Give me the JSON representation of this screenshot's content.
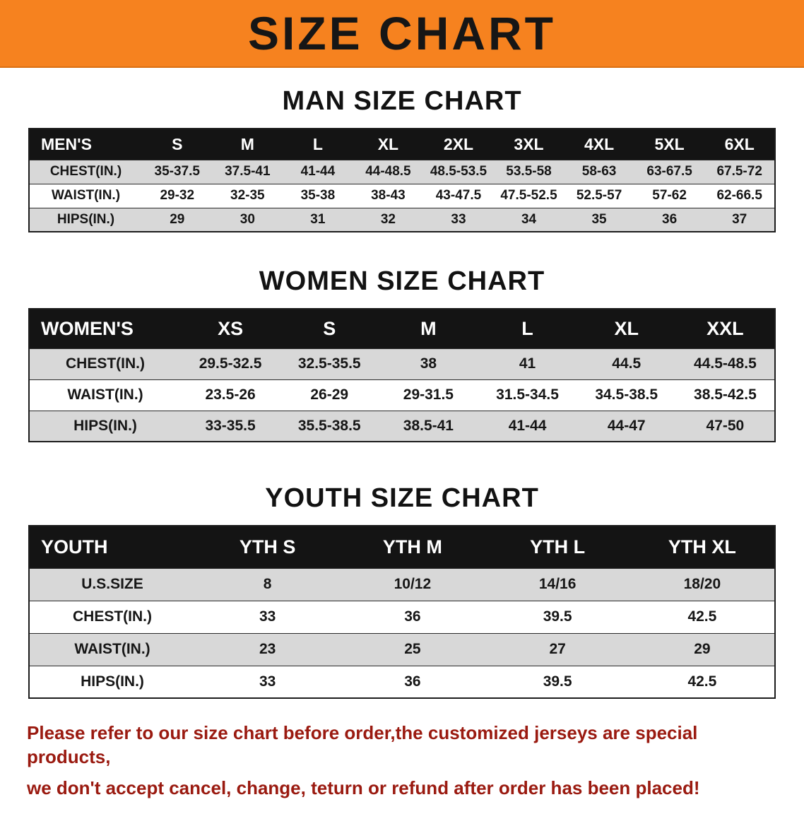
{
  "banner": {
    "title": "SIZE CHART"
  },
  "colors": {
    "banner_bg": "#F6821F",
    "banner_text": "#161616",
    "header_bg": "#141414",
    "header_text": "#FFFFFF",
    "row_shade": "#D8D8D8",
    "border": "#1C1C1C",
    "footer_text": "#9A1A10"
  },
  "sections": [
    {
      "heading": "MAN SIZE CHART",
      "category": "MEN'S",
      "sizes": [
        "S",
        "M",
        "L",
        "XL",
        "2XL",
        "3XL",
        "4XL",
        "5XL",
        "6XL"
      ],
      "rows": [
        {
          "label": "CHEST(IN.)",
          "values": [
            "35-37.5",
            "37.5-41",
            "41-44",
            "44-48.5",
            "48.5-53.5",
            "53.5-58",
            "58-63",
            "63-67.5",
            "67.5-72"
          ]
        },
        {
          "label": "WAIST(IN.)",
          "values": [
            "29-32",
            "32-35",
            "35-38",
            "38-43",
            "43-47.5",
            "47.5-52.5",
            "52.5-57",
            "57-62",
            "62-66.5"
          ]
        },
        {
          "label": "HIPS(IN.)",
          "values": [
            "29",
            "30",
            "31",
            "32",
            "33",
            "34",
            "35",
            "36",
            "37"
          ]
        }
      ]
    },
    {
      "heading": "WOMEN SIZE CHART",
      "category": "WOMEN'S",
      "sizes": [
        "XS",
        "S",
        "M",
        "L",
        "XL",
        "XXL"
      ],
      "rows": [
        {
          "label": "CHEST(IN.)",
          "values": [
            "29.5-32.5",
            "32.5-35.5",
            "38",
            "41",
            "44.5",
            "44.5-48.5"
          ]
        },
        {
          "label": "WAIST(IN.)",
          "values": [
            "23.5-26",
            "26-29",
            "29-31.5",
            "31.5-34.5",
            "34.5-38.5",
            "38.5-42.5"
          ]
        },
        {
          "label": "HIPS(IN.)",
          "values": [
            "33-35.5",
            "35.5-38.5",
            "38.5-41",
            "41-44",
            "44-47",
            "47-50"
          ]
        }
      ]
    },
    {
      "heading": "YOUTH SIZE CHART",
      "category": "YOUTH",
      "sizes": [
        "YTH S",
        "YTH M",
        "YTH L",
        "YTH XL"
      ],
      "rows": [
        {
          "label": "U.S.SIZE",
          "values": [
            "8",
            "10/12",
            "14/16",
            "18/20"
          ]
        },
        {
          "label": "CHEST(IN.)",
          "values": [
            "33",
            "36",
            "39.5",
            "42.5"
          ]
        },
        {
          "label": "WAIST(IN.)",
          "values": [
            "23",
            "25",
            "27",
            "29"
          ]
        },
        {
          "label": "HIPS(IN.)",
          "values": [
            "33",
            "36",
            "39.5",
            "42.5"
          ]
        }
      ]
    }
  ],
  "footer": {
    "line1": "Please refer to our size chart before order,the customized jerseys are special products,",
    "line2": "we don't accept cancel, change, teturn or refund after order has been placed!"
  }
}
